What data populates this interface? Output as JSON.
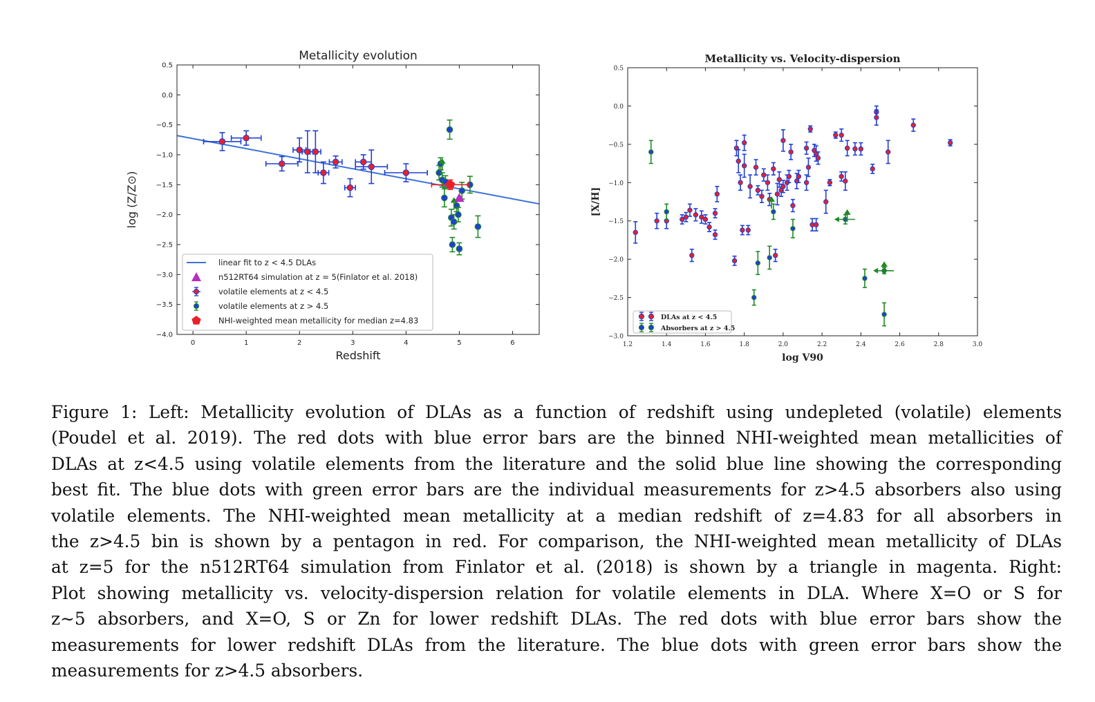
{
  "chart_data": [
    {
      "type": "scatter",
      "title": "Metallicity evolution",
      "xlabel": "Redshift",
      "ylabel": "log (Z/Z⊙)",
      "xlim": [
        -0.3,
        6.5
      ],
      "ylim": [
        -4.0,
        0.5
      ],
      "xticks": [
        "0",
        "1",
        "2",
        "3",
        "4",
        "5",
        "6"
      ],
      "yticks": [
        "0.5",
        "0.0",
        "−0.5",
        "−1.0",
        "−1.5",
        "−2.0",
        "−2.5",
        "−3.0",
        "−3.5",
        "−4.0"
      ],
      "legend_position": "lower-left",
      "legend": [
        "linear fit to z < 4.5 DLAs",
        "n512RT64 simulation at z = 5(Finlator et al. 2018)",
        "volatile elements at z < 4.5",
        "volatile elements at z > 4.5",
        "NHI-weighted mean metallicity for median z=4.83"
      ],
      "fit_line": {
        "x": [
          -0.3,
          6.5
        ],
        "y": [
          -0.68,
          -1.82
        ]
      },
      "series": [
        {
          "name": "volatile elements at z < 4.5",
          "marker_color": "#e8202a",
          "edge_color": "#1f3fd6",
          "error_color": "#1f3fd6",
          "points": [
            {
              "x": 0.55,
              "y": -0.78,
              "xerr": 0.35,
              "yerr": 0.15
            },
            {
              "x": 1.0,
              "y": -0.72,
              "xerr": 0.28,
              "yerr": 0.12
            },
            {
              "x": 1.67,
              "y": -1.15,
              "xerr": 0.3,
              "yerr": 0.12
            },
            {
              "x": 2.0,
              "y": -0.92,
              "xerr": 0.12,
              "yerr": 0.2
            },
            {
              "x": 2.15,
              "y": -0.95,
              "xerr": 0.1,
              "yerr": 0.35
            },
            {
              "x": 2.3,
              "y": -0.95,
              "xerr": 0.1,
              "yerr": 0.35
            },
            {
              "x": 2.45,
              "y": -1.3,
              "xerr": 0.1,
              "yerr": 0.18
            },
            {
              "x": 2.68,
              "y": -1.12,
              "xerr": 0.12,
              "yerr": 0.1
            },
            {
              "x": 2.95,
              "y": -1.55,
              "xerr": 0.1,
              "yerr": 0.15
            },
            {
              "x": 3.2,
              "y": -1.12,
              "xerr": 0.15,
              "yerr": 0.12
            },
            {
              "x": 3.35,
              "y": -1.2,
              "xerr": 0.3,
              "yerr": 0.28
            },
            {
              "x": 4.0,
              "y": -1.3,
              "xerr": 0.4,
              "yerr": 0.15
            }
          ]
        },
        {
          "name": "volatile elements at z > 4.5",
          "marker_color": "#1f3fd6",
          "edge_color": "#1f8a22",
          "error_color": "#1f8a22",
          "points": [
            {
              "x": 4.62,
              "y": -1.3,
              "yerr": 0.12
            },
            {
              "x": 4.65,
              "y": -1.15,
              "yerr": 0.1
            },
            {
              "x": 4.68,
              "y": -1.42,
              "yerr": 0.12
            },
            {
              "x": 4.72,
              "y": -1.72,
              "yerr": 0.15
            },
            {
              "x": 4.74,
              "y": -1.45,
              "yerr": 0.1
            },
            {
              "x": 4.82,
              "y": -0.58,
              "yerr": 0.16
            },
            {
              "x": 4.85,
              "y": -2.05,
              "yerr": 0.14
            },
            {
              "x": 4.87,
              "y": -2.5,
              "yerr": 0.12
            },
            {
              "x": 4.9,
              "y": -2.12,
              "yerr": 0.12
            },
            {
              "x": 4.95,
              "y": -1.85,
              "yerr": 0.1
            },
            {
              "x": 4.98,
              "y": -2.0,
              "yerr": 0.12
            },
            {
              "x": 5.0,
              "y": -2.57,
              "yerr": 0.1
            },
            {
              "x": 5.05,
              "y": -1.6,
              "yerr": 0.14
            },
            {
              "x": 5.2,
              "y": -1.5,
              "yerr": 0.14
            },
            {
              "x": 5.35,
              "y": -2.2,
              "yerr": 0.18
            }
          ],
          "upper_limits": [
            {
              "x": 4.68,
              "y": -1.15
            },
            {
              "x": 4.9,
              "y": -1.8
            }
          ]
        },
        {
          "name": "n512RT64 simulation at z = 5(Finlator et al. 2018)",
          "marker": "triangle",
          "color": "#b52fc0",
          "points": [
            {
              "x": 5.0,
              "y": -1.72
            }
          ]
        },
        {
          "name": "NHI-weighted mean metallicity for median z=4.83",
          "marker": "pentagon",
          "color": "#e8202a",
          "points": [
            {
              "x": 4.83,
              "y": -1.5,
              "xerr": 0.35,
              "yerr": 0.08
            }
          ]
        }
      ]
    },
    {
      "type": "scatter",
      "title": "Metallicity vs. Velocity-dispersion",
      "xlabel": "log V90",
      "ylabel": "[X/H]",
      "xlim": [
        1.2,
        3.0
      ],
      "ylim": [
        -3.0,
        0.5
      ],
      "xticks": [
        "1.2",
        "1.4",
        "1.6",
        "1.8",
        "2.0",
        "2.2",
        "2.4",
        "2.6",
        "2.8",
        "3.0"
      ],
      "yticks": [
        "0.5",
        "0.0",
        "−0.5",
        "−1.0",
        "−1.5",
        "−2.0",
        "−2.5",
        "−3.0"
      ],
      "legend_position": "lower-left",
      "legend": [
        "DLAs at z < 4.5",
        "Absorbers at z > 4.5"
      ],
      "series": [
        {
          "name": "DLAs at z < 4.5",
          "marker_color": "#e8202a",
          "edge_color": "#1f3fd6",
          "error_color": "#1f3fd6",
          "points": [
            {
              "x": 1.24,
              "y": -1.65,
              "yerr": 0.14
            },
            {
              "x": 1.35,
              "y": -1.5,
              "yerr": 0.1
            },
            {
              "x": 1.4,
              "y": -1.5,
              "yerr": 0.1
            },
            {
              "x": 1.48,
              "y": -1.48,
              "yerr": 0.06
            },
            {
              "x": 1.5,
              "y": -1.45,
              "yerr": 0.06
            },
            {
              "x": 1.52,
              "y": -1.36,
              "yerr": 0.08
            },
            {
              "x": 1.53,
              "y": -1.95,
              "yerr": 0.08
            },
            {
              "x": 1.55,
              "y": -1.42,
              "yerr": 0.08
            },
            {
              "x": 1.58,
              "y": -1.45,
              "yerr": 0.08
            },
            {
              "x": 1.6,
              "y": -1.48,
              "yerr": 0.06
            },
            {
              "x": 1.62,
              "y": -1.58,
              "yerr": 0.06
            },
            {
              "x": 1.65,
              "y": -1.68,
              "yerr": 0.06
            },
            {
              "x": 1.65,
              "y": -1.4,
              "yerr": 0.06
            },
            {
              "x": 1.66,
              "y": -1.15,
              "yerr": 0.1
            },
            {
              "x": 1.75,
              "y": -2.02,
              "yerr": 0.06
            },
            {
              "x": 1.76,
              "y": -0.55,
              "yerr": 0.1
            },
            {
              "x": 1.77,
              "y": -0.72,
              "yerr": 0.15
            },
            {
              "x": 1.78,
              "y": -1.0,
              "yerr": 0.1
            },
            {
              "x": 1.79,
              "y": -1.62,
              "yerr": 0.06
            },
            {
              "x": 1.8,
              "y": -0.48,
              "yerr": 0.1
            },
            {
              "x": 1.8,
              "y": -0.78,
              "yerr": 0.15
            },
            {
              "x": 1.82,
              "y": -1.62,
              "yerr": 0.06
            },
            {
              "x": 1.83,
              "y": -1.05,
              "yerr": 0.15
            },
            {
              "x": 1.86,
              "y": -0.8,
              "yerr": 0.1
            },
            {
              "x": 1.87,
              "y": -1.1,
              "yerr": 0.06
            },
            {
              "x": 1.89,
              "y": -1.18,
              "yerr": 0.08
            },
            {
              "x": 1.9,
              "y": -0.9,
              "yerr": 0.08
            },
            {
              "x": 1.92,
              "y": -1.0,
              "yerr": 0.1
            },
            {
              "x": 1.93,
              "y": -1.22,
              "yerr": 0.08
            },
            {
              "x": 1.95,
              "y": -0.82,
              "yerr": 0.08
            },
            {
              "x": 1.96,
              "y": -1.95,
              "yerr": 0.08
            },
            {
              "x": 1.97,
              "y": -1.15,
              "yerr": 0.14
            },
            {
              "x": 1.98,
              "y": -0.96,
              "yerr": 0.1
            },
            {
              "x": 1.99,
              "y": -1.1,
              "yerr": 0.08
            },
            {
              "x": 2.0,
              "y": -1.05,
              "yerr": 0.08
            },
            {
              "x": 2.0,
              "y": -0.45,
              "yerr": 0.14
            },
            {
              "x": 2.02,
              "y": -1.0,
              "yerr": 0.1
            },
            {
              "x": 2.03,
              "y": -0.92,
              "yerr": 0.08
            },
            {
              "x": 2.04,
              "y": -0.6,
              "yerr": 0.1
            },
            {
              "x": 2.05,
              "y": -1.3,
              "yerr": 0.08
            },
            {
              "x": 2.07,
              "y": -0.98,
              "yerr": 0.1
            },
            {
              "x": 2.08,
              "y": -0.92,
              "yerr": 0.08
            },
            {
              "x": 2.12,
              "y": -0.55,
              "yerr": 0.08
            },
            {
              "x": 2.12,
              "y": -1.0,
              "yerr": 0.1
            },
            {
              "x": 2.13,
              "y": -0.8,
              "yerr": 0.12
            },
            {
              "x": 2.14,
              "y": -0.3,
              "yerr": 0.04
            },
            {
              "x": 2.15,
              "y": -1.55,
              "yerr": 0.08
            },
            {
              "x": 2.16,
              "y": -0.58,
              "yerr": 0.08
            },
            {
              "x": 2.17,
              "y": -0.62,
              "yerr": 0.1
            },
            {
              "x": 2.17,
              "y": -1.55,
              "yerr": 0.08
            },
            {
              "x": 2.18,
              "y": -0.68,
              "yerr": 0.08
            },
            {
              "x": 2.22,
              "y": -1.25,
              "yerr": 0.15
            },
            {
              "x": 2.24,
              "y": -1.0,
              "yerr": 0.04
            },
            {
              "x": 2.27,
              "y": -0.38,
              "yerr": 0.04
            },
            {
              "x": 2.3,
              "y": -0.92,
              "yerr": 0.06
            },
            {
              "x": 2.3,
              "y": -0.38,
              "yerr": 0.08
            },
            {
              "x": 2.32,
              "y": -0.98,
              "yerr": 0.12
            },
            {
              "x": 2.33,
              "y": -0.55,
              "yerr": 0.1
            },
            {
              "x": 2.37,
              "y": -0.56,
              "yerr": 0.08
            },
            {
              "x": 2.4,
              "y": -0.56,
              "yerr": 0.08
            },
            {
              "x": 2.46,
              "y": -0.82,
              "yerr": 0.06
            },
            {
              "x": 2.48,
              "y": -0.08,
              "yerr": 0.08
            },
            {
              "x": 2.48,
              "y": -0.15,
              "yerr": 0.1
            },
            {
              "x": 2.54,
              "y": -0.6,
              "yerr": 0.15
            },
            {
              "x": 2.67,
              "y": -0.25,
              "yerr": 0.08
            },
            {
              "x": 2.86,
              "y": -0.48,
              "yerr": 0.04
            }
          ]
        },
        {
          "name": "Absorbers at z > 4.5",
          "marker_color": "#1f3fd6",
          "edge_color": "#1f8a22",
          "error_color": "#1f8a22",
          "points": [
            {
              "x": 1.32,
              "y": -0.6,
              "yerr": 0.15
            },
            {
              "x": 1.4,
              "y": -1.38,
              "yerr": 0.1
            },
            {
              "x": 1.85,
              "y": -2.5,
              "yerr": 0.1
            },
            {
              "x": 1.87,
              "y": -2.05,
              "yerr": 0.15
            },
            {
              "x": 1.93,
              "y": -1.98,
              "yerr": 0.15
            },
            {
              "x": 1.95,
              "y": -1.38,
              "yerr": 0.1
            },
            {
              "x": 2.05,
              "y": -1.6,
              "yerr": 0.12
            },
            {
              "x": 2.32,
              "y": -1.48,
              "yerr": 0.06
            },
            {
              "x": 2.42,
              "y": -2.25,
              "yerr": 0.12
            },
            {
              "x": 2.52,
              "y": -2.15,
              "yerr": 0.04
            },
            {
              "x": 2.52,
              "y": -2.72,
              "yerr": 0.15
            }
          ],
          "upper_limits": [
            {
              "x": 1.94,
              "y": -1.25
            },
            {
              "x": 2.33,
              "y": -1.42
            },
            {
              "x": 2.52,
              "y": -2.1
            }
          ],
          "left_limits": [
            {
              "x": 2.32,
              "y": -1.48
            },
            {
              "x": 2.52,
              "y": -2.15
            }
          ]
        }
      ]
    }
  ],
  "caption": {
    "lines": [
      "Figure 1: Left: Metallicity evolution of DLAs as a function of redshift using undepleted (volatile) elements",
      "(Poudel et al. 2019). The red dots with blue error bars are the binned NHI-weighted mean metallicities of",
      "DLAs at z<4.5 using volatile elements from the literature and the solid blue line showing the corresponding",
      "best fit. The blue dots with green error bars are the individual measurements for z>4.5 absorbers also using",
      "volatile elements. The NHI-weighted mean metallicity at a median redshift of z=4.83 for all absorbers in",
      "the z>4.5 bin is shown by a pentagon in red. For comparison, the NHI-weighted mean metallicity of DLAs",
      "at z=5 for the n512RT64 simulation from Finlator et al. (2018) is shown by a triangle in magenta. Right:",
      "Plot showing metallicity vs. velocity-dispersion relation for volatile elements in DLA. Where X=O or S for",
      "z∼5 absorbers, and X=O, S or Zn for lower redshift DLAs. The red dots with blue error bars show the",
      "measurements for lower redshift DLAs from the literature. The blue dots with green error bars show the",
      "measurements for z>4.5 absorbers."
    ]
  }
}
